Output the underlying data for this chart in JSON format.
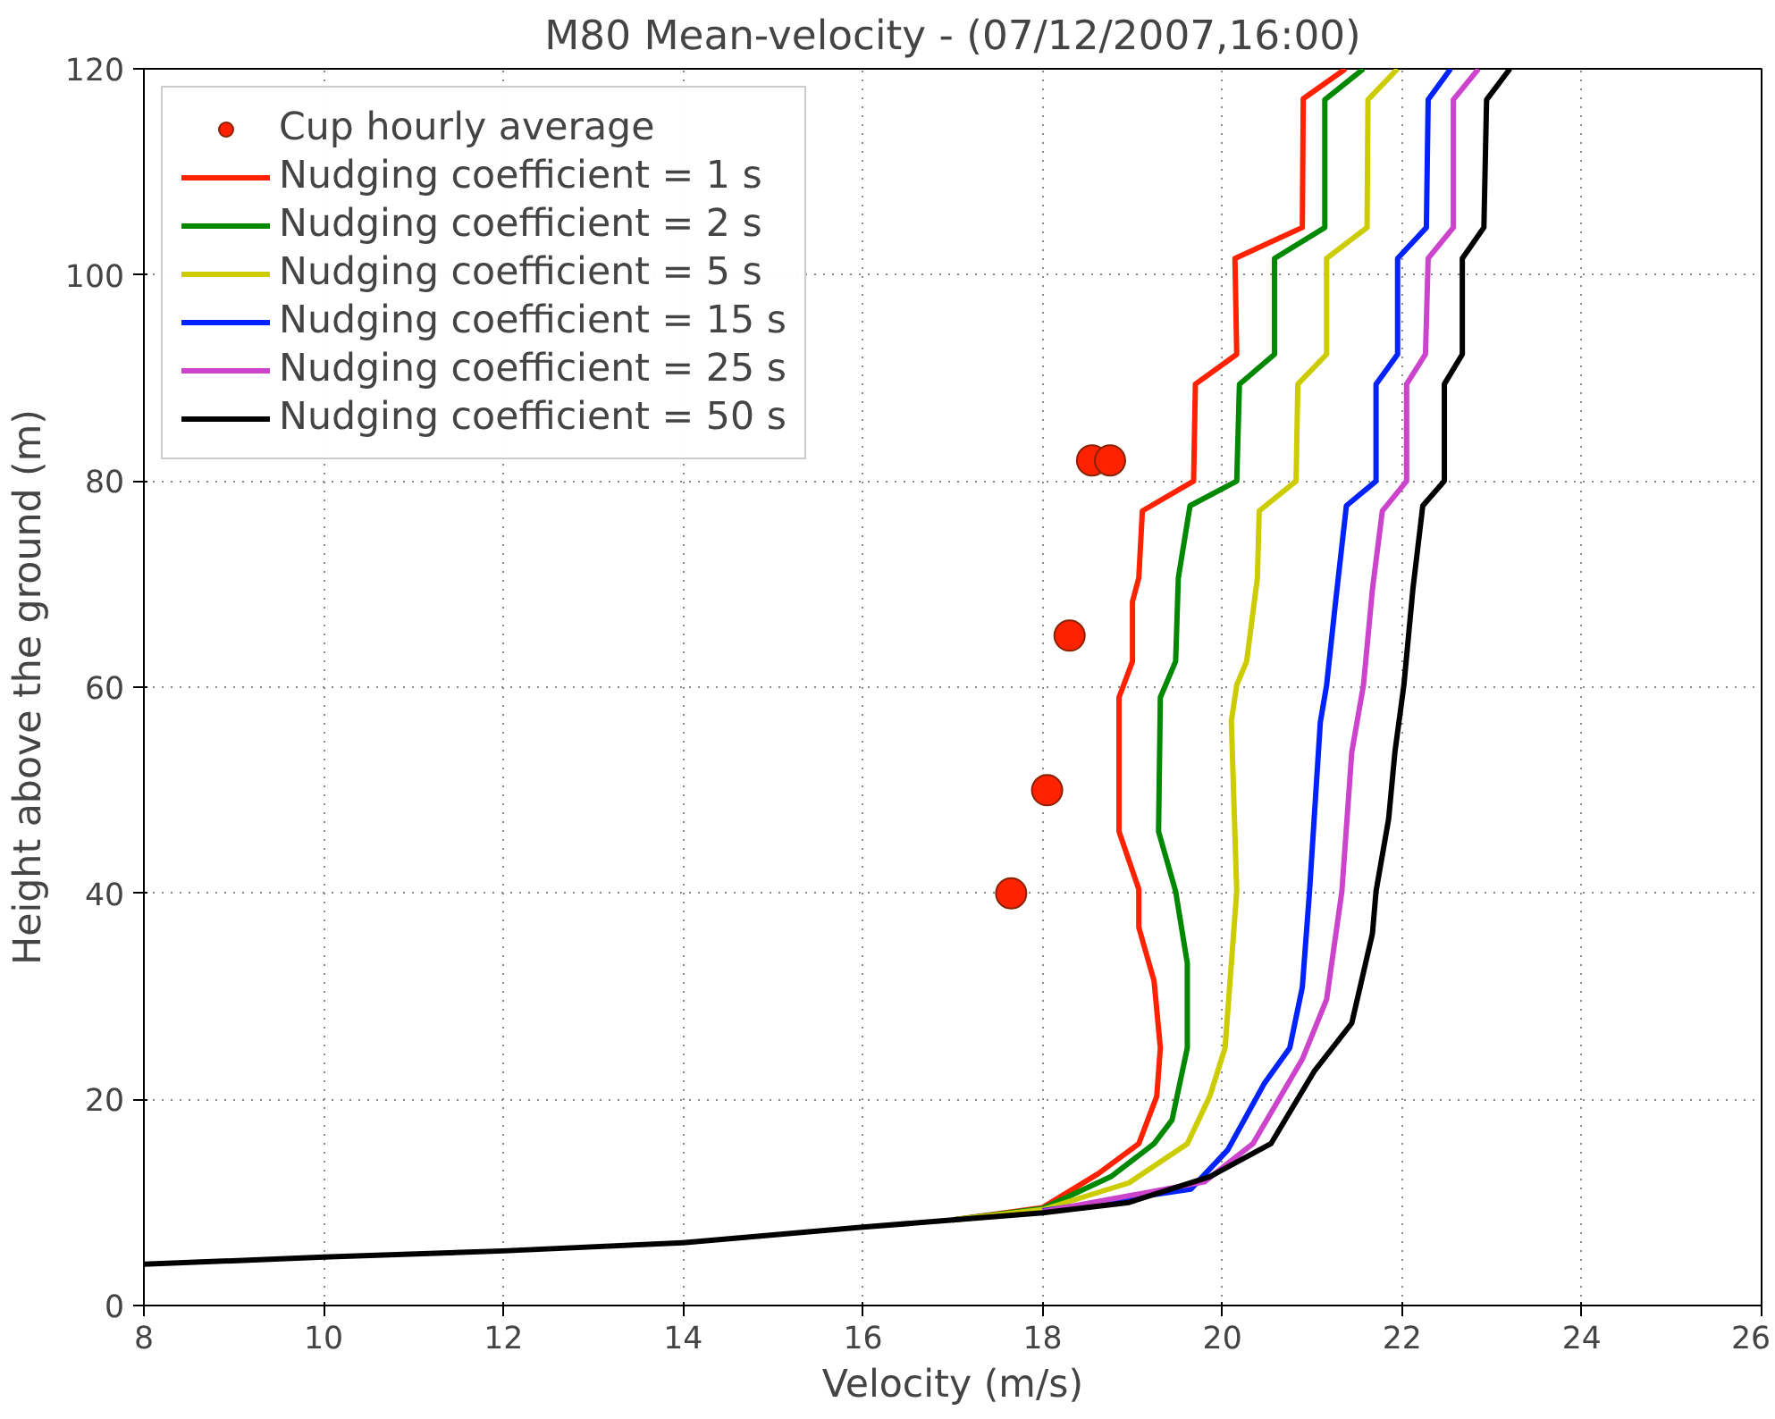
{
  "chart_data": {
    "type": "line",
    "title": "M80 Mean-velocity - (07/12/2007,16:00)",
    "xlabel": "Velocity (m/s)",
    "ylabel": "Height above the ground (m)",
    "xlim": [
      8,
      26
    ],
    "xticks": [
      8,
      10,
      12,
      14,
      16,
      18,
      20,
      22,
      24,
      26
    ],
    "ylim": [
      0,
      120
    ],
    "yticks": [
      0,
      20,
      40,
      60,
      80,
      100,
      120
    ],
    "grid": true,
    "legend": "top left",
    "line_style": "solid",
    "series": [
      {
        "name": "Cup hourly average",
        "type": "scatter",
        "marker": "circle",
        "color": "#ff2200",
        "x": [
          17.65,
          18.05,
          18.3,
          18.55,
          18.75
        ],
        "values": [
          40,
          50,
          65,
          82,
          82
        ]
      },
      {
        "name": "Nudging coefficient = 1 s",
        "color": "#ff2200",
        "x": [
          17,
          18,
          18.62,
          19.07,
          19.27,
          19.31,
          19.24,
          19.07,
          19.07,
          18.85,
          18.85,
          19.0,
          19.0,
          19.07,
          19.11,
          19.68,
          19.7,
          20.16,
          20.14,
          20.89,
          20.9,
          21.37
        ],
        "values": [
          8.3,
          9.5,
          12.8,
          15.7,
          20.3,
          25,
          31.5,
          36.7,
          40.4,
          46,
          59,
          62.5,
          68.3,
          70.6,
          77.1,
          80,
          89.4,
          92.3,
          101.6,
          104.6,
          117.1,
          120
        ]
      },
      {
        "name": "Nudging coefficient = 2 s",
        "color": "#008800",
        "x": [
          17,
          18,
          18.76,
          19.24,
          19.44,
          19.61,
          19.61,
          19.48,
          19.29,
          19.31,
          19.48,
          19.51,
          19.64,
          20.16,
          20.19,
          20.58,
          20.58,
          21.14,
          21.14,
          21.57
        ],
        "values": [
          8.3,
          9.4,
          12.5,
          15.7,
          18,
          25,
          33.2,
          40.2,
          46,
          59,
          62.5,
          70.6,
          77.6,
          80,
          89.4,
          92.3,
          101.6,
          104.6,
          117,
          120
        ]
      },
      {
        "name": "Nudging coefficient = 5 s",
        "color": "#cccc00",
        "x": [
          17,
          18,
          18.96,
          19.61,
          19.86,
          20.03,
          20.16,
          20.1,
          20.16,
          20.27,
          20.39,
          20.41,
          20.82,
          20.84,
          21.16,
          21.16,
          21.61,
          21.62,
          21.95
        ],
        "values": [
          8.3,
          9.3,
          11.9,
          15.7,
          20.3,
          25,
          40.2,
          56.7,
          60.2,
          62.5,
          70.6,
          77.1,
          80,
          89.4,
          92.3,
          101.6,
          104.6,
          117,
          120
        ]
      },
      {
        "name": "Nudging coefficient = 15 s",
        "color": "#0022ff",
        "x": [
          18,
          18.96,
          19.65,
          20.06,
          20.47,
          20.75,
          20.89,
          20.97,
          21.09,
          21.16,
          21.26,
          21.38,
          21.71,
          21.71,
          21.95,
          21.95,
          22.27,
          22.29,
          22.54
        ],
        "values": [
          9.2,
          10.4,
          11.3,
          15.1,
          21.6,
          25,
          30.9,
          40.2,
          56.6,
          60.2,
          68.3,
          77.6,
          80,
          89.4,
          92.3,
          101.6,
          104.6,
          117,
          120
        ]
      },
      {
        "name": "Nudging coefficient = 25 s",
        "color": "#cc44cc",
        "x": [
          18,
          19.8,
          20.34,
          20.89,
          21.16,
          21.33,
          21.44,
          21.57,
          21.67,
          21.78,
          22.05,
          22.05,
          22.26,
          22.29,
          22.57,
          22.57,
          22.85
        ],
        "values": [
          9.1,
          12.0,
          15.7,
          23.9,
          29.7,
          40.2,
          53.7,
          60.2,
          69.5,
          77.1,
          80,
          89.4,
          92.3,
          101.6,
          104.6,
          117,
          120
        ]
      },
      {
        "name": "Nudging coefficient = 50 s",
        "color": "#000000",
        "x": [
          8,
          10,
          12,
          14,
          16,
          17,
          18,
          18.96,
          19.86,
          20.54,
          21.02,
          21.44,
          21.67,
          21.71,
          21.85,
          21.92,
          22.02,
          22.12,
          22.23,
          22.47,
          22.47,
          22.67,
          22.67,
          22.91,
          22.94,
          23.2
        ],
        "values": [
          4,
          4.7,
          5.3,
          6.1,
          7.6,
          8.3,
          9.0,
          10,
          12.5,
          15.7,
          22.7,
          27.4,
          36.1,
          40.2,
          47.2,
          53.7,
          60.2,
          69.5,
          77.6,
          80,
          89.4,
          92.3,
          101.6,
          104.6,
          117,
          120
        ]
      }
    ]
  }
}
